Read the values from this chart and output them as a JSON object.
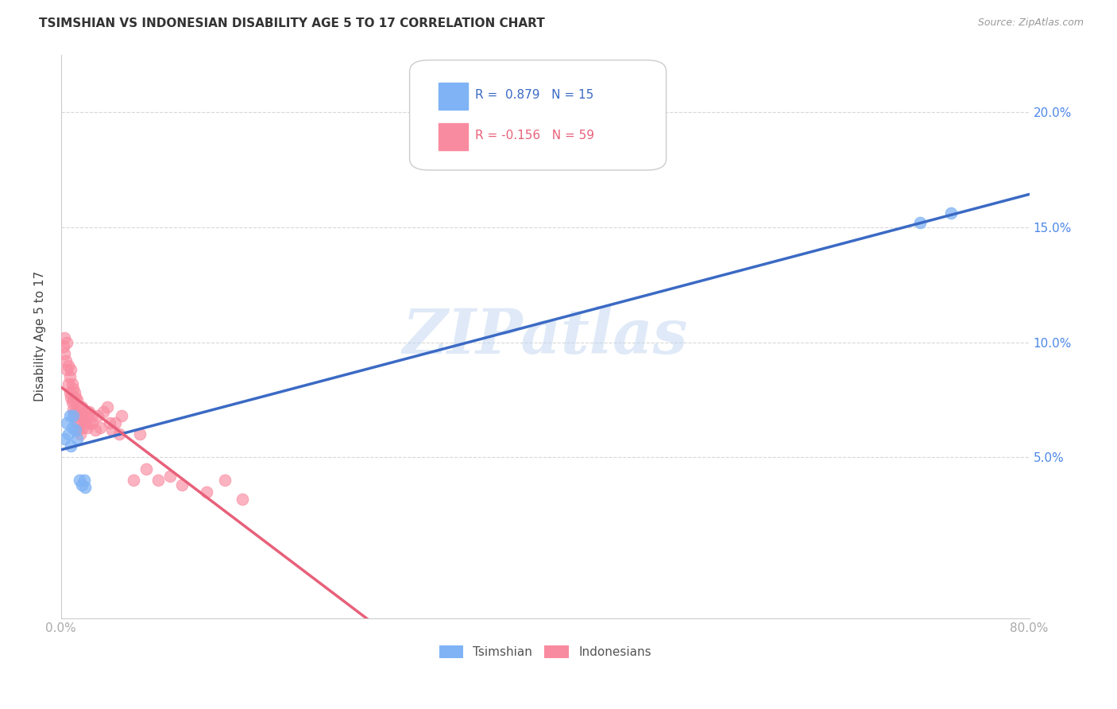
{
  "title": "TSIMSHIAN VS INDONESIAN DISABILITY AGE 5 TO 17 CORRELATION CHART",
  "source": "Source: ZipAtlas.com",
  "ylabel": "Disability Age 5 to 17",
  "ytick_labels": [
    "5.0%",
    "10.0%",
    "15.0%",
    "20.0%"
  ],
  "ytick_values": [
    0.05,
    0.1,
    0.15,
    0.2
  ],
  "xmin": 0.0,
  "xmax": 0.8,
  "ymin": -0.02,
  "ymax": 0.225,
  "legend_blue_r": "R =  0.879",
  "legend_blue_n": "N = 15",
  "legend_pink_r": "R = -0.156",
  "legend_pink_n": "N = 59",
  "blue_color": "#7fb3f5",
  "pink_color": "#f98ba0",
  "blue_line_color": "#3b6ac4",
  "pink_line_color": "#e8607a",
  "pink_dash_color": "#f5b8c4",
  "blue_label": "Tsimshian",
  "pink_label": "Indonesians",
  "watermark": "ZIPatlas",
  "tsimshian_x": [
    0.003,
    0.005,
    0.006,
    0.007,
    0.008,
    0.009,
    0.01,
    0.012,
    0.013,
    0.015,
    0.017,
    0.019,
    0.02,
    0.71,
    0.735
  ],
  "tsimshian_y": [
    0.058,
    0.065,
    0.06,
    0.068,
    0.055,
    0.063,
    0.068,
    0.062,
    0.058,
    0.04,
    0.038,
    0.04,
    0.037,
    0.152,
    0.156
  ],
  "indonesian_x": [
    0.002,
    0.003,
    0.003,
    0.004,
    0.005,
    0.005,
    0.006,
    0.006,
    0.007,
    0.007,
    0.008,
    0.008,
    0.009,
    0.009,
    0.01,
    0.01,
    0.01,
    0.011,
    0.011,
    0.012,
    0.012,
    0.013,
    0.013,
    0.014,
    0.014,
    0.015,
    0.015,
    0.016,
    0.016,
    0.017,
    0.018,
    0.018,
    0.019,
    0.02,
    0.021,
    0.022,
    0.023,
    0.024,
    0.025,
    0.026,
    0.028,
    0.03,
    0.032,
    0.035,
    0.038,
    0.04,
    0.042,
    0.045,
    0.048,
    0.05,
    0.06,
    0.065,
    0.07,
    0.08,
    0.09,
    0.1,
    0.12,
    0.135,
    0.15
  ],
  "indonesian_y": [
    0.098,
    0.102,
    0.095,
    0.092,
    0.1,
    0.088,
    0.09,
    0.082,
    0.085,
    0.078,
    0.088,
    0.076,
    0.082,
    0.074,
    0.08,
    0.075,
    0.071,
    0.078,
    0.07,
    0.076,
    0.068,
    0.075,
    0.065,
    0.072,
    0.062,
    0.07,
    0.065,
    0.068,
    0.06,
    0.072,
    0.068,
    0.063,
    0.07,
    0.065,
    0.068,
    0.063,
    0.07,
    0.065,
    0.068,
    0.065,
    0.062,
    0.068,
    0.063,
    0.07,
    0.072,
    0.065,
    0.062,
    0.065,
    0.06,
    0.068,
    0.04,
    0.06,
    0.045,
    0.04,
    0.042,
    0.038,
    0.035,
    0.04,
    0.032
  ],
  "grid_color": "#d8d8d8",
  "spine_color": "#cccccc",
  "tick_color": "#aaaaaa"
}
